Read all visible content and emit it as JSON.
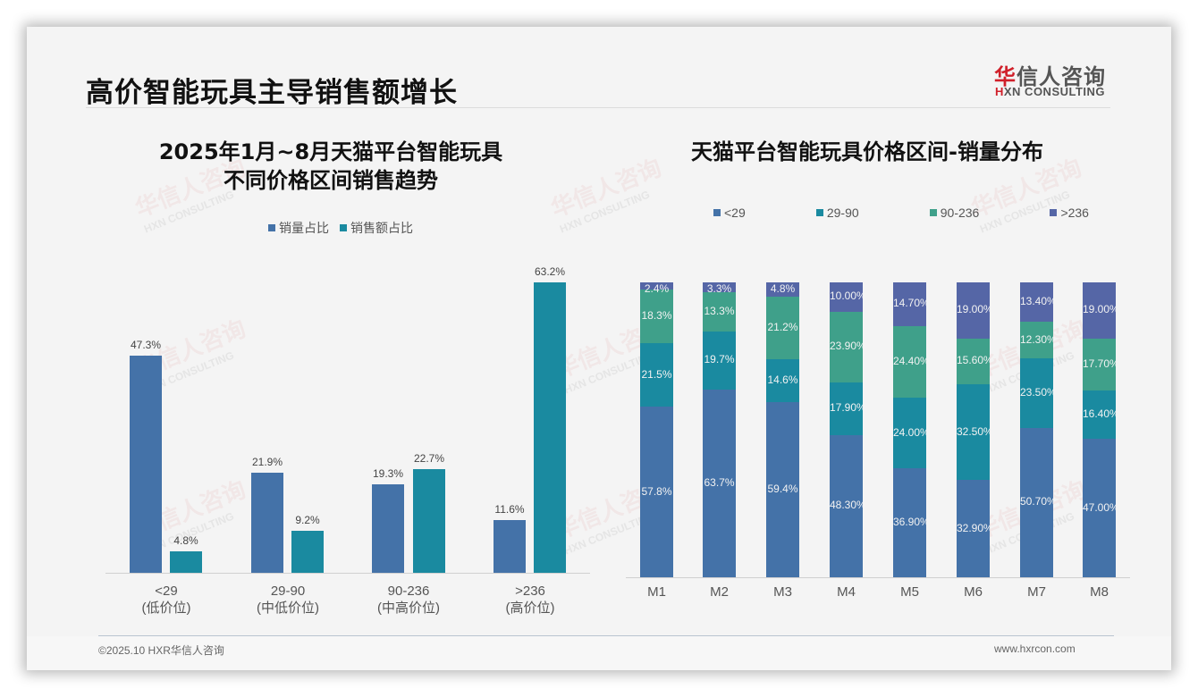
{
  "header": {
    "title": "高价智能玩具主导销售额增长",
    "logo_cn_first": "华",
    "logo_cn_rest": "信人咨询",
    "logo_en_first": "H",
    "logo_en_rest": "XN CONSULTING"
  },
  "watermark": {
    "cn": "华信人咨询",
    "en": "HXN CONSULTING"
  },
  "colors": {
    "blue": "#4472a8",
    "teal": "#1a8aa0",
    "green": "#3fa08a",
    "purple": "#5566a6",
    "logo_red": "#d0202a"
  },
  "left_chart": {
    "title_line1": "2025年1月~8月天猫平台智能玩具",
    "title_line2": "不同价格区间销售趋势",
    "legend": [
      {
        "label": "销量占比",
        "color": "#4472a8"
      },
      {
        "label": "销售额占比",
        "color": "#1a8aa0"
      }
    ],
    "groups": [
      {
        "range": "<29",
        "tier": "(低价位)",
        "volume": "47.3%",
        "sales": "4.8%"
      },
      {
        "range": "29-90",
        "tier": "(中低价位)",
        "volume": "21.9%",
        "sales": "9.2%"
      },
      {
        "range": "90-236",
        "tier": "(中高价位)",
        "volume": "19.3%",
        "sales": "22.7%"
      },
      {
        "range": ">236",
        "tier": "(高价位)",
        "volume": "11.6%",
        "sales": "63.2%"
      }
    ]
  },
  "right_chart": {
    "title": "天猫平台智能玩具价格区间-销量分布",
    "legend": [
      {
        "label": "<29",
        "color": "#4472a8"
      },
      {
        "label": "29-90",
        "color": "#1a8aa0"
      },
      {
        "label": "90-236",
        "color": "#3fa08a"
      },
      {
        "label": ">236",
        "color": "#5566a6"
      }
    ],
    "months": [
      {
        "label": "M1",
        "s1": "57.8%",
        "s2": "21.5%",
        "s3": "18.3%",
        "s4": "2.4%"
      },
      {
        "label": "M2",
        "s1": "63.7%",
        "s2": "19.7%",
        "s3": "13.3%",
        "s4": "3.3%"
      },
      {
        "label": "M3",
        "s1": "59.4%",
        "s2": "14.6%",
        "s3": "21.2%",
        "s4": "4.8%"
      },
      {
        "label": "M4",
        "s1": "48.30%",
        "s2": "17.90%",
        "s3": "23.90%",
        "s4": "10.00%"
      },
      {
        "label": "M5",
        "s1": "36.90%",
        "s2": "24.00%",
        "s3": "24.40%",
        "s4": "14.70%"
      },
      {
        "label": "M6",
        "s1": "32.90%",
        "s2": "32.50%",
        "s3": "15.60%",
        "s4": "19.00%"
      },
      {
        "label": "M7",
        "s1": "50.70%",
        "s2": "23.50%",
        "s3": "12.30%",
        "s4": "13.40%"
      },
      {
        "label": "M8",
        "s1": "47.00%",
        "s2": "16.40%",
        "s3": "17.70%",
        "s4": "19.00%"
      }
    ]
  },
  "footer": {
    "copyright": "©2025.10 HXR华信人咨询",
    "website": "www.hxrcon.com"
  },
  "chart_data": [
    {
      "type": "bar",
      "title": "2025年1月~8月天猫平台智能玩具不同价格区间销售趋势",
      "categories": [
        "<29 (低价位)",
        "29-90 (中低价位)",
        "90-236 (中高价位)",
        ">236 (高价位)"
      ],
      "series": [
        {
          "name": "销量占比",
          "values": [
            47.3,
            21.9,
            19.3,
            11.6
          ]
        },
        {
          "name": "销售额占比",
          "values": [
            4.8,
            9.2,
            22.7,
            63.2
          ]
        }
      ],
      "xlabel": "",
      "ylabel": "",
      "unit": "%",
      "legend_position": "top",
      "grid": false
    },
    {
      "type": "bar",
      "stacked": true,
      "title": "天猫平台智能玩具价格区间-销量分布",
      "categories": [
        "M1",
        "M2",
        "M3",
        "M4",
        "M5",
        "M6",
        "M7",
        "M8"
      ],
      "series": [
        {
          "name": "<29",
          "values": [
            57.8,
            63.7,
            59.4,
            48.3,
            36.9,
            32.9,
            50.7,
            47.0
          ]
        },
        {
          "name": "29-90",
          "values": [
            21.5,
            19.7,
            14.6,
            17.9,
            24.0,
            32.5,
            23.5,
            16.4
          ]
        },
        {
          "name": "90-236",
          "values": [
            18.3,
            13.3,
            21.2,
            23.9,
            24.4,
            15.6,
            12.3,
            17.7
          ]
        },
        {
          "name": ">236",
          "values": [
            2.4,
            3.3,
            4.8,
            10.0,
            14.7,
            19.0,
            13.4,
            19.0
          ]
        }
      ],
      "xlabel": "",
      "ylabel": "",
      "unit": "%",
      "ylim": [
        0,
        100
      ],
      "legend_position": "top",
      "grid": false
    }
  ]
}
